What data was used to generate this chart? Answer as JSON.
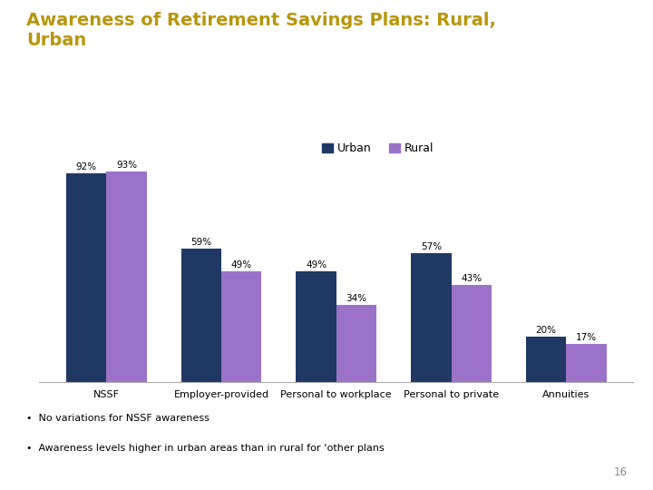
{
  "title_line1": "Awareness of Retirement Savings Plans: Rural,",
  "title_line2": "Urban",
  "title_color": "#B8960C",
  "categories": [
    "NSSF",
    "Employer-provided",
    "Personal to workplace",
    "Personal to private",
    "Annuities"
  ],
  "urban_values": [
    92,
    59,
    49,
    57,
    20
  ],
  "rural_values": [
    93,
    49,
    34,
    43,
    17
  ],
  "urban_color": "#1F3864",
  "rural_color": "#9B72C8",
  "legend_labels": [
    "Urban",
    "Rural"
  ],
  "bar_width": 0.35,
  "ylim": [
    0,
    108
  ],
  "footnote1": "No variations for NSSF awareness",
  "footnote2": "Awareness levels higher in urban areas than in rural for ‘other plans",
  "page_number": "16",
  "xlabel_fontsize": 8,
  "value_fontsize": 7.5,
  "legend_fontsize": 9,
  "title_fontsize": 14
}
